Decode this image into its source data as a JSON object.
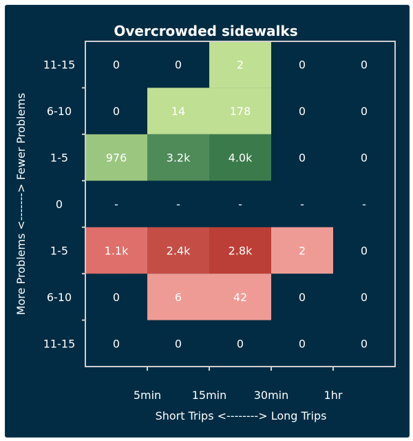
{
  "chart_data": {
    "type": "heatmap",
    "title": "Overcrowded sidewalks",
    "xlabel": "Short Trips <--------> Long Trips",
    "ylabel": "More Problems <-------> Fewer Problems",
    "x_tick_labels": [
      "5min",
      "15min",
      "30min",
      "1hr"
    ],
    "y_categories": [
      "11-15",
      "6-10",
      "1-5",
      "0",
      "1-5",
      "6-10",
      "11-15"
    ],
    "columns": 5,
    "values": [
      [
        "0",
        "0",
        "2",
        "0",
        "0"
      ],
      [
        "0",
        "14",
        "178",
        "0",
        "0"
      ],
      [
        "976",
        "3.2k",
        "4.0k",
        "0",
        "0"
      ],
      [
        "-",
        "-",
        "-",
        "-",
        "-"
      ],
      [
        "1.1k",
        "2.4k",
        "2.8k",
        "2",
        "0"
      ],
      [
        "0",
        "6",
        "42",
        "0",
        "0"
      ],
      [
        "0",
        "0",
        "0",
        "0",
        "0"
      ]
    ],
    "fill_colors": [
      [
        null,
        null,
        "#bfdf93",
        null,
        null
      ],
      [
        null,
        "#bfdf93",
        "#bfdf93",
        null,
        null
      ],
      [
        "#9bc67f",
        "#4f8a59",
        "#3b7a4b",
        null,
        null
      ],
      [
        null,
        null,
        null,
        null,
        null
      ],
      [
        "#df6f6a",
        "#c44d45",
        "#bb3f36",
        "#ef9b95",
        null
      ],
      [
        null,
        "#ef9b95",
        "#ef9b95",
        null,
        null
      ],
      [
        null,
        null,
        null,
        null,
        null
      ]
    ],
    "colors": {
      "background": "#022c43",
      "frame": "#d0d0d0",
      "text": "#ffffff"
    }
  }
}
